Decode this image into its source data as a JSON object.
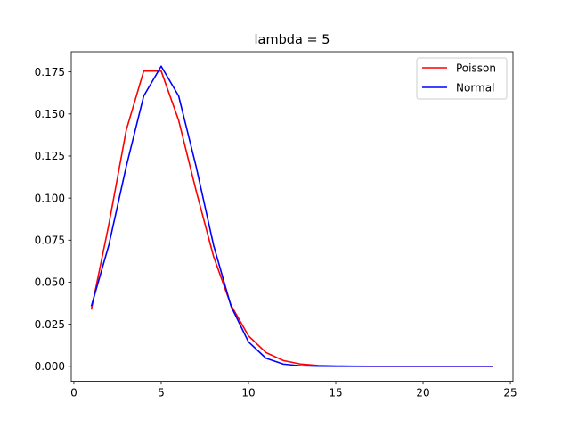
{
  "chart_data": {
    "type": "line",
    "title": "lambda = 5",
    "xlabel": "",
    "ylabel": "",
    "xlim": [
      -0.15,
      25.15
    ],
    "ylim": [
      -0.0089,
      0.187
    ],
    "xticks": [
      0,
      5,
      10,
      15,
      20,
      25
    ],
    "xtick_labels": [
      "0",
      "5",
      "10",
      "15",
      "20",
      "25"
    ],
    "yticks": [
      0.0,
      0.025,
      0.05,
      0.075,
      0.1,
      0.125,
      0.15,
      0.175
    ],
    "ytick_labels": [
      "0.000",
      "0.025",
      "0.050",
      "0.075",
      "0.100",
      "0.125",
      "0.150",
      "0.175"
    ],
    "grid": false,
    "legend_position": "top-right",
    "x": [
      1,
      2,
      3,
      4,
      5,
      6,
      7,
      8,
      9,
      10,
      11,
      12,
      13,
      14,
      15,
      16,
      17,
      18,
      19,
      20,
      21,
      22,
      23,
      24
    ],
    "series": [
      {
        "name": "Poisson",
        "color": "#ff0000",
        "values": [
          0.0337,
          0.0842,
          0.1404,
          0.1755,
          0.1755,
          0.1462,
          0.1044,
          0.0653,
          0.0363,
          0.0181,
          0.0082,
          0.0034,
          0.0013,
          0.0005,
          0.0002,
          5e-05,
          1e-05,
          0.0,
          0.0,
          0.0,
          0.0,
          0.0,
          0.0,
          0.0
        ]
      },
      {
        "name": "Normal",
        "color": "#0000ff",
        "values": [
          0.0357,
          0.072,
          0.1188,
          0.1607,
          0.1784,
          0.1607,
          0.1188,
          0.072,
          0.0357,
          0.0145,
          0.0048,
          0.0013,
          0.0003,
          5e-05,
          1e-05,
          0.0,
          0.0,
          0.0,
          0.0,
          0.0,
          0.0,
          0.0,
          0.0,
          0.0
        ]
      }
    ]
  }
}
